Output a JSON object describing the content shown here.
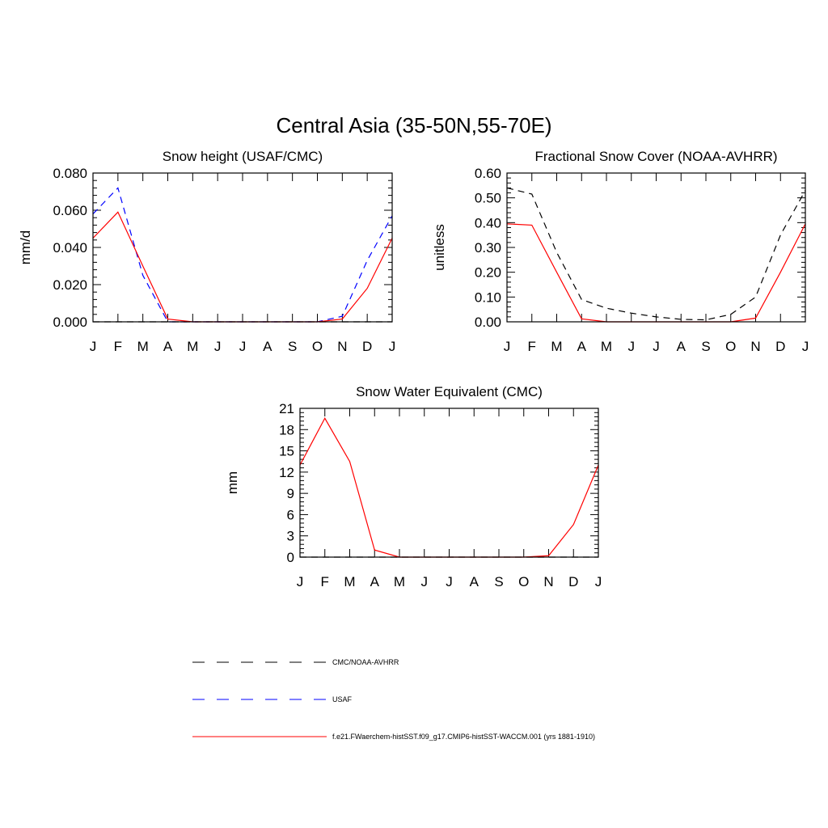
{
  "figure_title": "Central Asia (35-50N,55-70E)",
  "chart_data": [
    {
      "type": "line",
      "title": "Snow height (USAF/CMC)",
      "xlabel": "",
      "ylabel": "mm/d",
      "categories": [
        "J",
        "F",
        "M",
        "A",
        "M",
        "J",
        "J",
        "A",
        "S",
        "O",
        "N",
        "D",
        "J"
      ],
      "ylim": [
        0,
        0.08
      ],
      "yticks": [
        "0.000",
        "0.020",
        "0.040",
        "0.060",
        "0.080"
      ],
      "grid": false,
      "series": [
        {
          "name": "CMC/NOAA-AVHRR",
          "color": "#000000",
          "dash": "8,6",
          "values": [
            0,
            0,
            0,
            0,
            0,
            0,
            0,
            0,
            0,
            0,
            0,
            0,
            0
          ]
        },
        {
          "name": "USAF",
          "color": "#0000ff",
          "dash": "8,6",
          "values": [
            0.058,
            0.072,
            0.025,
            0,
            0,
            0,
            0,
            0,
            0,
            0,
            0.003,
            0.033,
            0.057
          ]
        },
        {
          "name": "f.e21.FWaerchem-histSST.f09_g17.CMIP6-histSST-WACCM.001 (yrs 1881-1910)",
          "color": "#ff0000",
          "dash": "",
          "values": [
            0.045,
            0.059,
            0.03,
            0.0015,
            0,
            0,
            0,
            0,
            0,
            0,
            0.0015,
            0.018,
            0.045
          ]
        }
      ]
    },
    {
      "type": "line",
      "title": "Fractional Snow Cover (NOAA-AVHRR)",
      "xlabel": "",
      "ylabel": "unitless",
      "categories": [
        "J",
        "F",
        "M",
        "A",
        "M",
        "J",
        "J",
        "A",
        "S",
        "O",
        "N",
        "D",
        "J"
      ],
      "ylim": [
        0,
        0.6
      ],
      "yticks": [
        "0.00",
        "0.10",
        "0.20",
        "0.30",
        "0.40",
        "0.50",
        "0.60"
      ],
      "grid": false,
      "series": [
        {
          "name": "CMC/NOAA-AVHRR",
          "color": "#000000",
          "dash": "8,6",
          "values": [
            0.54,
            0.515,
            0.28,
            0.09,
            0.055,
            0.035,
            0.02,
            0.01,
            0.008,
            0.03,
            0.1,
            0.35,
            0.53
          ]
        },
        {
          "name": "f.e21.FWaerchem-histSST.f09_g17.CMIP6-histSST-WACCM.001 (yrs 1881-1910)",
          "color": "#ff0000",
          "dash": "",
          "values": [
            0.395,
            0.39,
            0.2,
            0.012,
            0,
            0,
            0,
            0,
            0,
            0,
            0.015,
            0.2,
            0.395
          ]
        }
      ]
    },
    {
      "type": "line",
      "title": "Snow Water Equivalent (CMC)",
      "xlabel": "",
      "ylabel": "mm",
      "categories": [
        "J",
        "F",
        "M",
        "A",
        "M",
        "J",
        "J",
        "A",
        "S",
        "O",
        "N",
        "D",
        "J"
      ],
      "ylim": [
        0,
        21
      ],
      "yticks": [
        "0",
        "3",
        "6",
        "9",
        "12",
        "15",
        "18",
        "21"
      ],
      "grid": false,
      "series": [
        {
          "name": "CMC/NOAA-AVHRR",
          "color": "#000000",
          "dash": "8,6",
          "values": [
            0,
            0,
            0,
            0,
            0,
            0,
            0,
            0,
            0,
            0,
            0,
            0,
            0
          ]
        },
        {
          "name": "f.e21.FWaerchem-histSST.f09_g17.CMIP6-histSST-WACCM.001 (yrs 1881-1910)",
          "color": "#ff0000",
          "dash": "",
          "values": [
            13,
            19.6,
            13.5,
            1,
            0,
            0,
            0,
            0,
            0,
            0,
            0.2,
            4.6,
            13
          ]
        }
      ]
    }
  ],
  "legend": [
    {
      "label": "CMC/NOAA-AVHRR",
      "color": "#000000",
      "dash": "15,15"
    },
    {
      "label": "USAF",
      "color": "#0000ff",
      "dash": "15,15"
    },
    {
      "label": "f.e21.FWaerchem-histSST.f09_g17.CMIP6-histSST-WACCM.001 (yrs 1881-1910)",
      "color": "#ff0000",
      "dash": ""
    }
  ]
}
